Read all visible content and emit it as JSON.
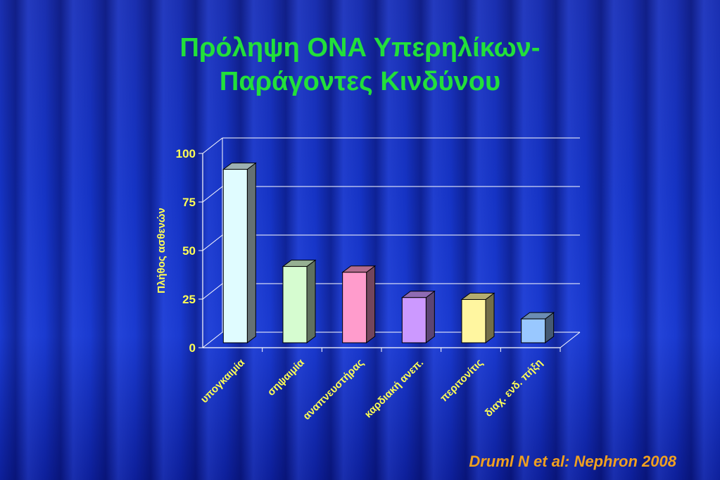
{
  "slide": {
    "title_line1": "Πρόληψη ΟΝΑ Υπερηλίκων-",
    "title_line2": "Παράγοντες Κινδύνου",
    "citation": "Druml N et al: Nephron 2008"
  },
  "chart_data": {
    "type": "bar",
    "style": "3d-column",
    "categories": [
      "υπογκαιμία",
      "σηψαιμία",
      "αναπνευστήρας",
      "καρδιακή ανεπ.",
      "περιτονίτις",
      "διαχ. ενδ. πήξη"
    ],
    "values": [
      90,
      40,
      37,
      24,
      23,
      13
    ],
    "bar_colors": [
      "#e0fcff",
      "#d6fcd0",
      "#ff9ccc",
      "#cc99ff",
      "#fff6a0",
      "#99c8ff"
    ],
    "ylabel": "Πλήθος ασθενών",
    "xlabel": "",
    "ylim": [
      0,
      100
    ],
    "yticks": [
      "0",
      "25",
      "50",
      "75",
      "100"
    ],
    "grid": true
  }
}
